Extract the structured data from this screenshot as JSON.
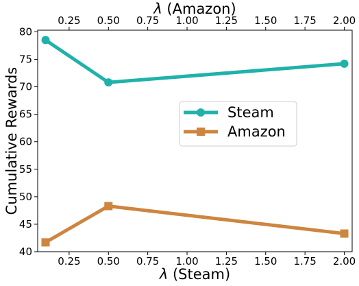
{
  "chart_data": {
    "type": "line",
    "x_bottom_label_symbol": "λ",
    "x_bottom_label_text": " (Steam)",
    "x_top_label_symbol": "λ",
    "x_top_label_text": " (Amazon)",
    "ylabel": "Cumulative Rewards",
    "x_ticks": [
      "0.25",
      "0.50",
      "0.75",
      "1.00",
      "1.25",
      "1.50",
      "1.75",
      "2.00"
    ],
    "x_tick_values": [
      0.25,
      0.5,
      0.75,
      1.0,
      1.25,
      1.5,
      1.75,
      2.0
    ],
    "y_ticks": [
      "40",
      "45",
      "50",
      "55",
      "60",
      "65",
      "70",
      "75",
      "80"
    ],
    "y_tick_values": [
      40,
      45,
      50,
      55,
      60,
      65,
      70,
      75,
      80
    ],
    "xlim": [
      0.05,
      2.05
    ],
    "ylim": [
      40,
      80.3
    ],
    "grid": false,
    "legend_position": "center-right",
    "series": [
      {
        "name": "Steam",
        "color": "#20b2aa",
        "marker": "circle",
        "x": [
          0.1,
          0.5,
          2.0
        ],
        "y": [
          78.5,
          70.8,
          74.2
        ]
      },
      {
        "name": "Amazon",
        "color": "#cd853f",
        "marker": "square",
        "x": [
          0.1,
          0.5,
          2.0
        ],
        "y": [
          41.7,
          48.3,
          43.3
        ]
      }
    ]
  }
}
